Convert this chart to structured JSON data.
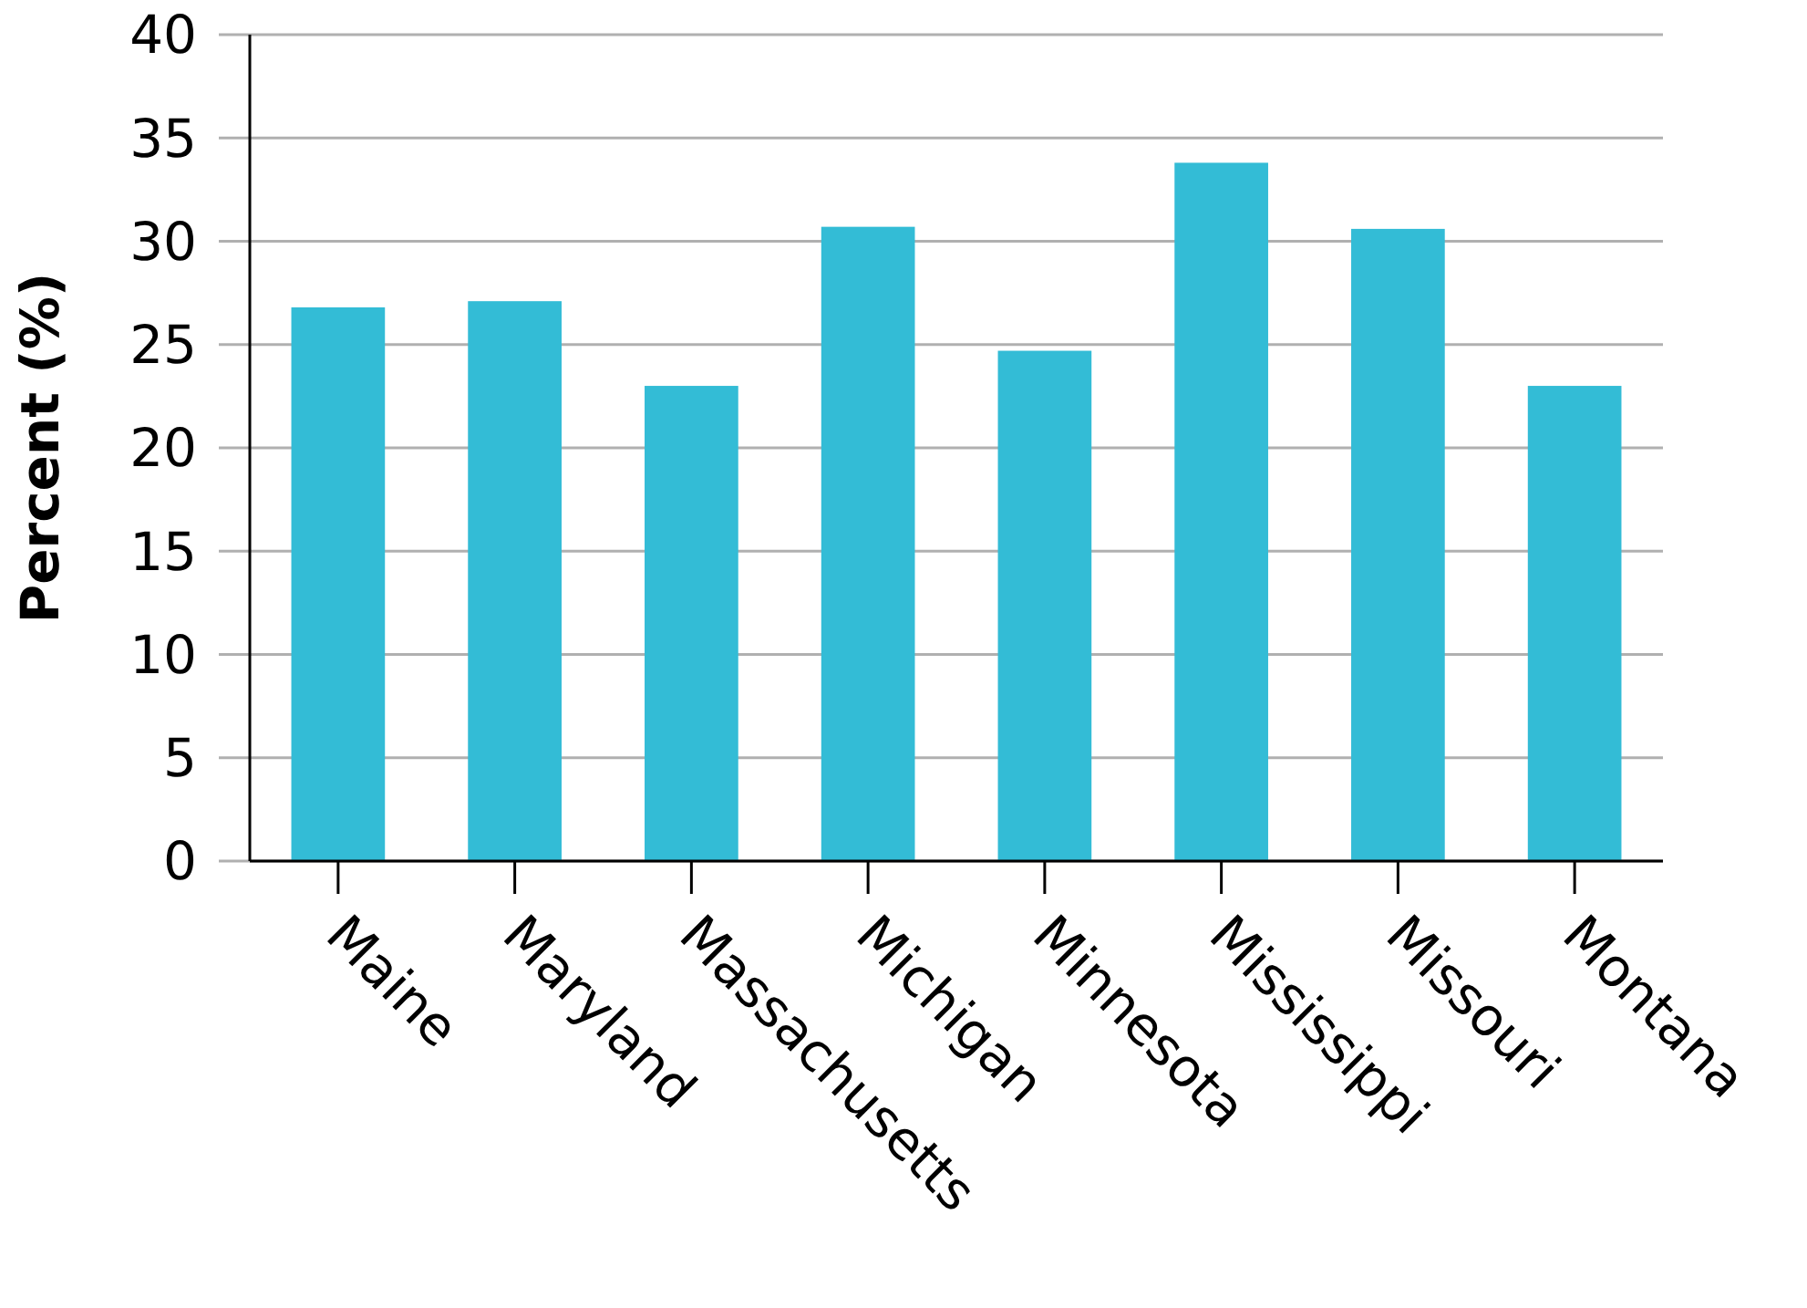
{
  "chart_data": {
    "type": "bar",
    "ylabel": "Percent (%)",
    "categories": [
      "Maine",
      "Maryland",
      "Massachusetts",
      "Michigan",
      "Minnesota",
      "Mississippi",
      "Missouri",
      "Montana"
    ],
    "values": [
      26.8,
      27.1,
      23.0,
      30.7,
      24.7,
      33.8,
      30.6,
      23.0
    ],
    "color": "#33bcd6",
    "ylim": [
      0,
      40
    ],
    "yticks": [
      0,
      5,
      10,
      15,
      20,
      25,
      30,
      35,
      40
    ],
    "grid": "y"
  }
}
